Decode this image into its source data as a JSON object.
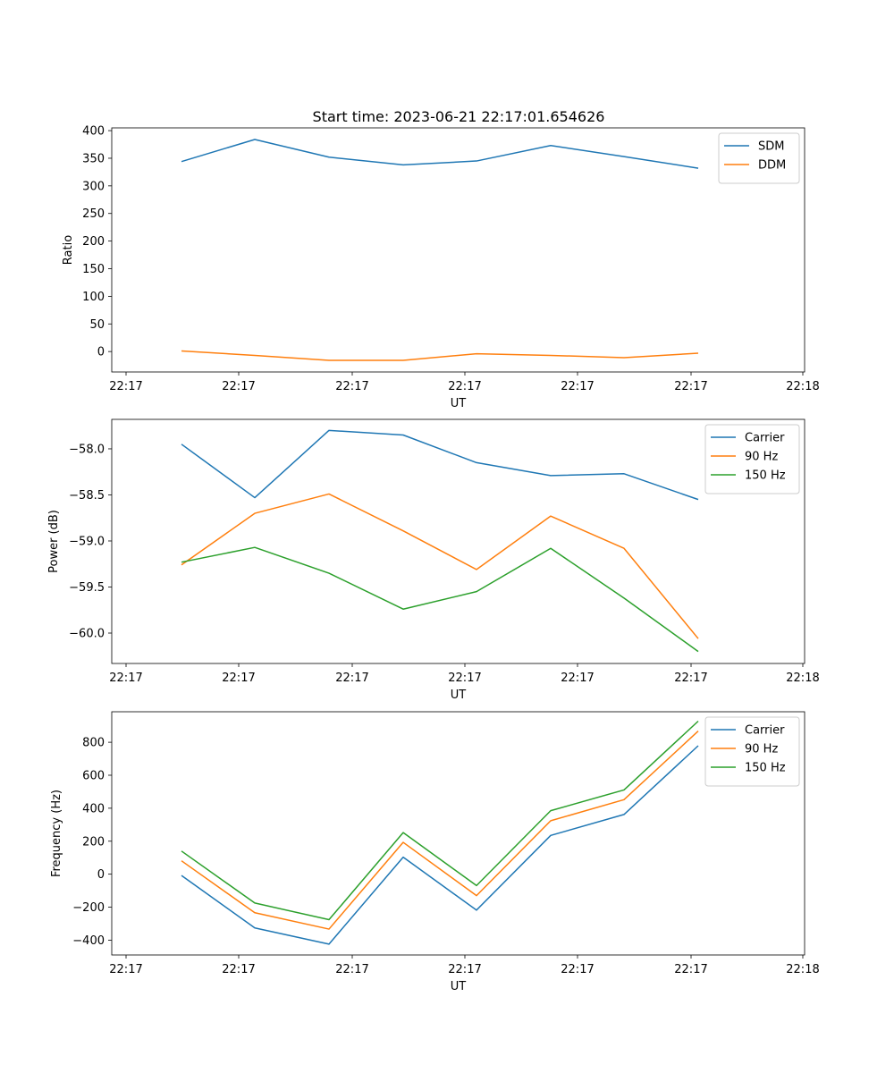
{
  "title": "Start time: 2023-06-21 22:17:01.654626",
  "colors": {
    "blue": "#1f77b4",
    "orange": "#ff7f0e",
    "green": "#2ca02c"
  },
  "chart_data": [
    {
      "type": "line",
      "xlabel": "UT",
      "ylabel": "Ratio",
      "x_tick_labels": [
        "22:17",
        "22:17",
        "22:17",
        "22:17",
        "22:17",
        "22:17",
        "22:18"
      ],
      "y_ticks": [
        0,
        50,
        100,
        150,
        200,
        250,
        300,
        350,
        400
      ],
      "y_tick_labels": [
        "0",
        "50",
        "100",
        "150",
        "200",
        "250",
        "300",
        "350",
        "400"
      ],
      "ylim": [
        -37,
        405
      ],
      "legend_position": "top-right",
      "series": [
        {
          "name": "SDM",
          "color": "#1f77b4",
          "values": [
            344,
            384,
            352,
            338,
            345,
            373,
            353,
            332
          ]
        },
        {
          "name": "DDM",
          "color": "#ff7f0e",
          "values": [
            1,
            -7,
            -16,
            -16,
            -4,
            -7,
            -11,
            -3
          ]
        }
      ]
    },
    {
      "type": "line",
      "xlabel": "UT",
      "ylabel": "Power (dB)",
      "x_tick_labels": [
        "22:17",
        "22:17",
        "22:17",
        "22:17",
        "22:17",
        "22:17",
        "22:18"
      ],
      "y_ticks": [
        -60.0,
        -59.5,
        -59.0,
        -58.5,
        -58.0
      ],
      "y_tick_labels": [
        "−60.0",
        "−59.5",
        "−59.0",
        "−58.5",
        "−58.0"
      ],
      "ylim": [
        -60.33,
        -57.68
      ],
      "legend_position": "top-right",
      "series": [
        {
          "name": "Carrier",
          "color": "#1f77b4",
          "values": [
            -57.95,
            -58.53,
            -57.8,
            -57.85,
            -58.15,
            -58.29,
            -58.27,
            -58.55
          ]
        },
        {
          "name": "90 Hz",
          "color": "#ff7f0e",
          "values": [
            -59.26,
            -58.7,
            -58.49,
            -58.89,
            -59.31,
            -58.73,
            -59.08,
            -60.06
          ]
        },
        {
          "name": "150 Hz",
          "color": "#2ca02c",
          "values": [
            -59.23,
            -59.07,
            -59.35,
            -59.74,
            -59.55,
            -59.08,
            -59.62,
            -60.2
          ]
        }
      ]
    },
    {
      "type": "line",
      "xlabel": "UT",
      "ylabel": "Frequency (Hz)",
      "x_tick_labels": [
        "22:17",
        "22:17",
        "22:17",
        "22:17",
        "22:17",
        "22:17",
        "22:18"
      ],
      "y_ticks": [
        -400,
        -200,
        0,
        200,
        400,
        600,
        800
      ],
      "y_tick_labels": [
        "−400",
        "−200",
        "0",
        "200",
        "400",
        "600",
        "800"
      ],
      "ylim": [
        -490,
        985
      ],
      "legend_position": "top-right",
      "series": [
        {
          "name": "Carrier",
          "color": "#1f77b4",
          "values": [
            -8,
            -326,
            -424,
            103,
            -218,
            235,
            362,
            779
          ]
        },
        {
          "name": "90 Hz",
          "color": "#ff7f0e",
          "values": [
            81,
            -234,
            -333,
            193,
            -130,
            324,
            452,
            868
          ]
        },
        {
          "name": "150 Hz",
          "color": "#2ca02c",
          "values": [
            140,
            -175,
            -276,
            252,
            -69,
            385,
            511,
            928
          ]
        }
      ]
    }
  ]
}
